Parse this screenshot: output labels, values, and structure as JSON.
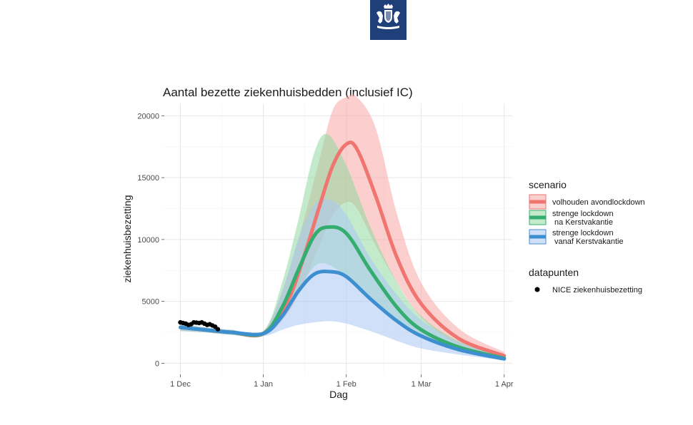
{
  "emblem": {
    "name": "rijksoverheid-emblem-icon",
    "color": "#1f3f7a"
  },
  "chart_data": {
    "type": "line",
    "title": "Aantal bezette ziekenhuisbedden (inclusief IC)",
    "xlabel": "Dag",
    "ylabel": "ziekenhuisbezetting",
    "x_ticks": [
      {
        "date": "2020-12-01",
        "label": "1 Dec"
      },
      {
        "date": "2021-01-01",
        "label": "1 Jan"
      },
      {
        "date": "2021-02-01",
        "label": "1 Feb"
      },
      {
        "date": "2021-03-01",
        "label": "1 Mar"
      },
      {
        "date": "2021-04-01",
        "label": "1 Apr"
      }
    ],
    "xlim": [
      "2020-11-25",
      "2021-04-04"
    ],
    "y_ticks": [
      0,
      5000,
      10000,
      15000,
      20000
    ],
    "ylim": [
      -900,
      21000
    ],
    "grid": true,
    "legend_placement": "right",
    "legend": {
      "scenario_title": "scenario",
      "points_title": "datapunten"
    },
    "series": [
      {
        "name": "volhouden avondlockdown",
        "legend_lines": [
          "volhouden avondlockdown"
        ],
        "color": "#f07470",
        "band_color": "#f8a8a4",
        "x": [
          "2020-12-01",
          "2020-12-10",
          "2020-12-20",
          "2021-01-01",
          "2021-01-10",
          "2021-01-16",
          "2021-01-22",
          "2021-01-27",
          "2021-02-01",
          "2021-02-05",
          "2021-02-12",
          "2021-02-20",
          "2021-03-01",
          "2021-03-15",
          "2021-04-01"
        ],
        "values": [
          2900,
          2700,
          2500,
          2400,
          5000,
          8500,
          12700,
          16000,
          17700,
          17300,
          13500,
          8500,
          4800,
          2000,
          600
        ],
        "lower": [
          2600,
          2500,
          2300,
          2200,
          4000,
          6500,
          9500,
          12000,
          13000,
          12500,
          9500,
          6500,
          3700,
          1500,
          400
        ],
        "upper": [
          3200,
          2900,
          2700,
          2600,
          7000,
          11500,
          16500,
          20500,
          21500,
          21500,
          19000,
          12000,
          6500,
          2800,
          900
        ]
      },
      {
        "name": "strenge lockdown na Kerstvakantie",
        "legend_lines": [
          "strenge lockdown",
          "na Kerstvakantie"
        ],
        "color": "#34ad6f",
        "band_color": "#8fd9a0",
        "x": [
          "2020-12-01",
          "2020-12-10",
          "2020-12-20",
          "2021-01-01",
          "2021-01-08",
          "2021-01-14",
          "2021-01-20",
          "2021-01-25",
          "2021-02-01",
          "2021-02-10",
          "2021-02-20",
          "2021-03-01",
          "2021-03-15",
          "2021-04-01"
        ],
        "values": [
          2900,
          2700,
          2500,
          2400,
          4500,
          7500,
          10300,
          11000,
          10500,
          7500,
          4500,
          2700,
          1300,
          400
        ],
        "lower": [
          2600,
          2500,
          2300,
          2200,
          3600,
          5800,
          7800,
          8000,
          7000,
          5200,
          3300,
          2100,
          1000,
          300
        ],
        "upper": [
          3200,
          2900,
          2700,
          2600,
          6500,
          11500,
          17000,
          18500,
          16000,
          11000,
          6500,
          3800,
          1800,
          550
        ]
      },
      {
        "name": "strenge lockdown vanaf Kerstvakantie",
        "legend_lines": [
          "strenge lockdown",
          "vanaf Kerstvakantie"
        ],
        "color": "#3e8fd0",
        "band_color": "#a9c7f4",
        "x": [
          "2020-12-01",
          "2020-12-10",
          "2020-12-20",
          "2021-01-01",
          "2021-01-08",
          "2021-01-14",
          "2021-01-20",
          "2021-01-26",
          "2021-02-01",
          "2021-02-10",
          "2021-02-20",
          "2021-03-01",
          "2021-03-15",
          "2021-04-01"
        ],
        "values": [
          2900,
          2700,
          2500,
          2400,
          3800,
          5800,
          7200,
          7400,
          7000,
          5200,
          3400,
          2200,
          1100,
          350
        ],
        "lower": [
          2600,
          2500,
          2300,
          2200,
          2700,
          3100,
          3300,
          3400,
          3200,
          2600,
          1800,
          1200,
          700,
          250
        ],
        "upper": [
          3200,
          2900,
          2700,
          2600,
          5800,
          10000,
          12800,
          13200,
          12000,
          8500,
          5500,
          3500,
          1700,
          500
        ]
      }
    ],
    "points": {
      "name": "NICE ziekenhuisbezetting",
      "color": "#000000",
      "x": [
        "2020-12-01",
        "2020-12-02",
        "2020-12-03",
        "2020-12-04",
        "2020-12-05",
        "2020-12-06",
        "2020-12-07",
        "2020-12-08",
        "2020-12-09",
        "2020-12-10",
        "2020-12-11",
        "2020-12-12",
        "2020-12-13",
        "2020-12-14",
        "2020-12-15"
      ],
      "values": [
        3300,
        3250,
        3200,
        3100,
        3150,
        3300,
        3280,
        3250,
        3300,
        3200,
        3100,
        3150,
        3050,
        2950,
        2750
      ]
    }
  }
}
